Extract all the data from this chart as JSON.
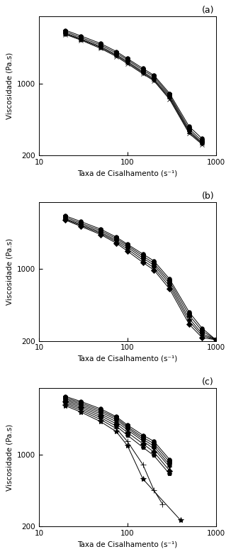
{
  "subplots": [
    {
      "label": "(a)",
      "series": [
        {
          "x": [
            20,
            30,
            50,
            75,
            100,
            150,
            200,
            300,
            500,
            700
          ],
          "y": [
            3300,
            2900,
            2450,
            2050,
            1750,
            1400,
            1200,
            800,
            380,
            290
          ],
          "marker": "o",
          "ms": 4
        },
        {
          "x": [
            20,
            30,
            50,
            75,
            100,
            150,
            200,
            300,
            500,
            700
          ],
          "y": [
            3200,
            2800,
            2370,
            1980,
            1700,
            1350,
            1160,
            770,
            360,
            275
          ],
          "marker": "s",
          "ms": 4
        },
        {
          "x": [
            20,
            30,
            50,
            75,
            100,
            150,
            200,
            300,
            500,
            700
          ],
          "y": [
            3100,
            2720,
            2290,
            1910,
            1640,
            1300,
            1110,
            745,
            345,
            265
          ],
          "marker": "^",
          "ms": 4
        },
        {
          "x": [
            20,
            30,
            50,
            75,
            100,
            150,
            200,
            300,
            500,
            700
          ],
          "y": [
            3050,
            2680,
            2240,
            1870,
            1600,
            1270,
            1080,
            720,
            335,
            260
          ],
          "marker": "v",
          "ms": 4
        },
        {
          "x": [
            20,
            30,
            50,
            75,
            100,
            150,
            200,
            300,
            500,
            700
          ],
          "y": [
            3000,
            2640,
            2190,
            1830,
            1560,
            1240,
            1060,
            700,
            325,
            255
          ],
          "marker": "x",
          "ms": 4
        }
      ],
      "ylim": [
        200,
        4500
      ],
      "xlim": [
        10,
        1000
      ],
      "ylabel": "Viscosidade (Pa.s)",
      "xlabel": "Taxa de Cisalhamento (s⁻¹)"
    },
    {
      "label": "(b)",
      "series": [
        {
          "x": [
            20,
            30,
            50,
            75,
            100,
            150,
            200,
            300,
            500,
            700,
            1000
          ],
          "y": [
            3300,
            2900,
            2450,
            2050,
            1750,
            1400,
            1200,
            800,
            380,
            265,
            205
          ],
          "marker": "o",
          "ms": 4
        },
        {
          "x": [
            20,
            30,
            50,
            75,
            100,
            150,
            200,
            300,
            500,
            700,
            1000
          ],
          "y": [
            3200,
            2800,
            2370,
            1980,
            1700,
            1340,
            1140,
            760,
            355,
            250,
            205
          ],
          "marker": "s",
          "ms": 4
        },
        {
          "x": [
            20,
            30,
            50,
            75,
            100,
            150,
            200,
            300,
            500,
            700,
            1000
          ],
          "y": [
            3100,
            2720,
            2290,
            1910,
            1640,
            1280,
            1090,
            720,
            330,
            235,
            205
          ],
          "marker": "^",
          "ms": 4
        },
        {
          "x": [
            20,
            30,
            50,
            75,
            100,
            150,
            200,
            300,
            500,
            700,
            1000
          ],
          "y": [
            3050,
            2660,
            2230,
            1850,
            1570,
            1220,
            1030,
            680,
            310,
            225,
            205
          ],
          "marker": "v",
          "ms": 4
        },
        {
          "x": [
            20,
            30,
            50,
            75,
            100,
            150,
            200,
            300,
            500,
            700,
            1000
          ],
          "y": [
            3000,
            2600,
            2170,
            1790,
            1500,
            1160,
            980,
            640,
            290,
            215,
            205
          ],
          "marker": "D",
          "ms": 4
        }
      ],
      "ylim": [
        200,
        4500
      ],
      "xlim": [
        10,
        1000
      ],
      "ylabel": "Viscosidade (Pa.s)",
      "xlabel": "Taxa de Cisalhamento (s⁻¹)"
    },
    {
      "label": "(c)",
      "series": [
        {
          "x": [
            20,
            30,
            50,
            75,
            100,
            150,
            200,
            300
          ],
          "y": [
            3700,
            3300,
            2800,
            2350,
            1950,
            1550,
            1350,
            900
          ],
          "marker": "o",
          "ms": 4
        },
        {
          "x": [
            20,
            30,
            50,
            75,
            100,
            150,
            200,
            300
          ],
          "y": [
            3600,
            3200,
            2700,
            2280,
            1880,
            1480,
            1280,
            850
          ],
          "marker": "s",
          "ms": 4
        },
        {
          "x": [
            20,
            30,
            50,
            75,
            100,
            150,
            200,
            300
          ],
          "y": [
            3500,
            3100,
            2600,
            2200,
            1820,
            1420,
            1210,
            800
          ],
          "marker": "^",
          "ms": 4
        },
        {
          "x": [
            20,
            30,
            50,
            75,
            100,
            150,
            200,
            300
          ],
          "y": [
            3400,
            3000,
            2500,
            2100,
            1750,
            1360,
            1140,
            760
          ],
          "marker": "v",
          "ms": 4
        },
        {
          "x": [
            20,
            30,
            50,
            75,
            100,
            150,
            200,
            300
          ],
          "y": [
            3300,
            2900,
            2400,
            2000,
            1650,
            1280,
            1060,
            700
          ],
          "marker": "D",
          "ms": 4
        },
        {
          "x": [
            20,
            30,
            50,
            75,
            100,
            150,
            200,
            300
          ],
          "y": [
            3200,
            2800,
            2300,
            1900,
            1550,
            1180,
            980,
            650
          ],
          "marker": "p",
          "ms": 4
        },
        {
          "x": [
            20,
            30,
            50,
            75,
            100,
            150,
            200,
            250
          ],
          "y": [
            3100,
            2700,
            2200,
            1800,
            1350,
            800,
            450,
            330
          ],
          "marker": "+",
          "ms": 6
        },
        {
          "x": [
            20,
            30,
            50,
            75,
            100,
            150,
            400
          ],
          "y": [
            3000,
            2600,
            2100,
            1680,
            1230,
            580,
            230
          ],
          "marker": "*",
          "ms": 6
        }
      ],
      "ylim": [
        200,
        4500
      ],
      "xlim": [
        10,
        1000
      ],
      "ylabel": "Viscosidade (Pa.s)",
      "xlabel": "Taxa de Cisalhamento (s⁻¹)"
    }
  ],
  "bg_color": "#ffffff"
}
